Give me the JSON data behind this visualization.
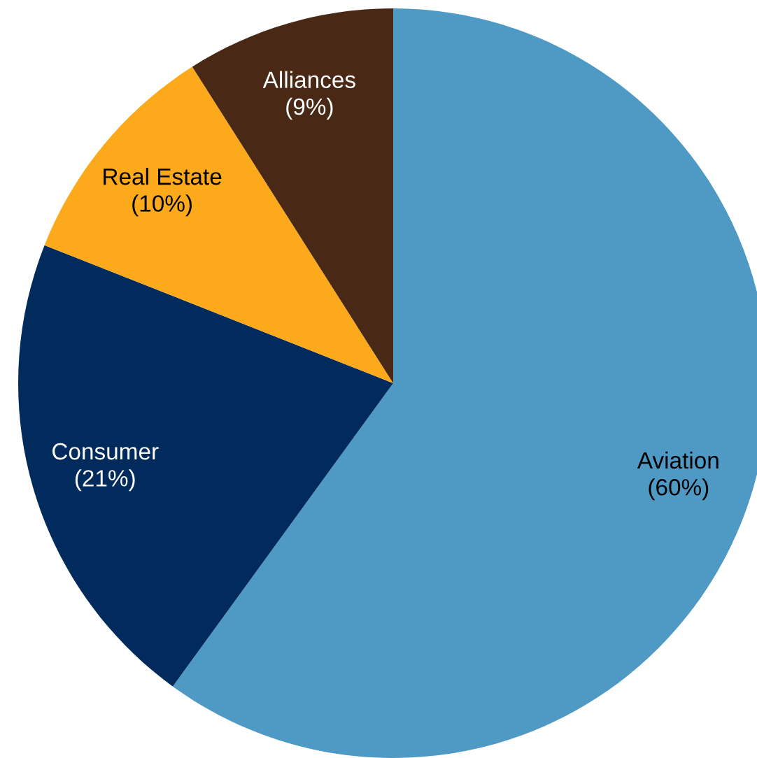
{
  "chart_data": {
    "type": "pie",
    "categories": [
      "Aviation",
      "Consumer",
      "Real Estate",
      "Alliances"
    ],
    "values": [
      60,
      21,
      10,
      9
    ],
    "value_labels": [
      "(60%)",
      "(21%)",
      "(10%)",
      "(9%)"
    ],
    "colors": [
      "#4f9ac4",
      "#002b5c",
      "#fcaa1b",
      "#4a2816"
    ]
  }
}
